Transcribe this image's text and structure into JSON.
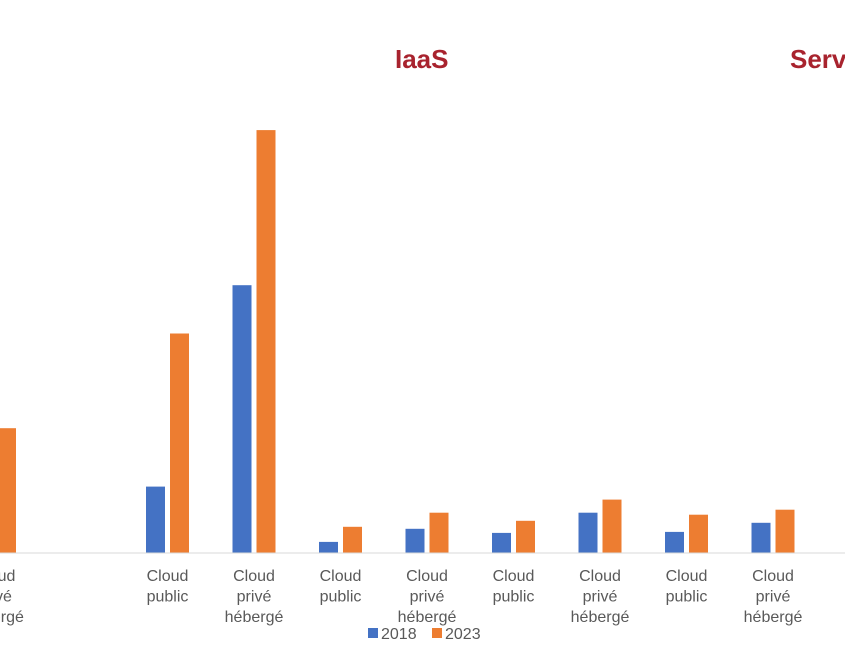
{
  "chart_data": {
    "type": "bar",
    "section_titles": [
      "IaaS",
      "Serv"
    ],
    "categories": [
      "Cloud privé hébergé",
      "",
      "Cloud public",
      "Cloud privé hébergé",
      "Cloud public",
      "Cloud privé hébergé",
      "Cloud public",
      "Cloud privé hébergé",
      "Cloud public",
      "Cloud privé hébergé"
    ],
    "series": [
      {
        "name": "2018",
        "color": "#4472c4",
        "values": [
          null,
          null,
          3.3,
          13.3,
          0.55,
          1.2,
          1.0,
          2.0,
          1.05,
          1.5
        ]
      },
      {
        "name": "2023",
        "color": "#ed7d31",
        "values": [
          6.2,
          null,
          10.9,
          21.0,
          1.3,
          2.0,
          1.6,
          2.65,
          1.9,
          2.15
        ]
      }
    ],
    "ylim": [
      0,
      22
    ],
    "grid": false,
    "legend_position": "bottom"
  }
}
